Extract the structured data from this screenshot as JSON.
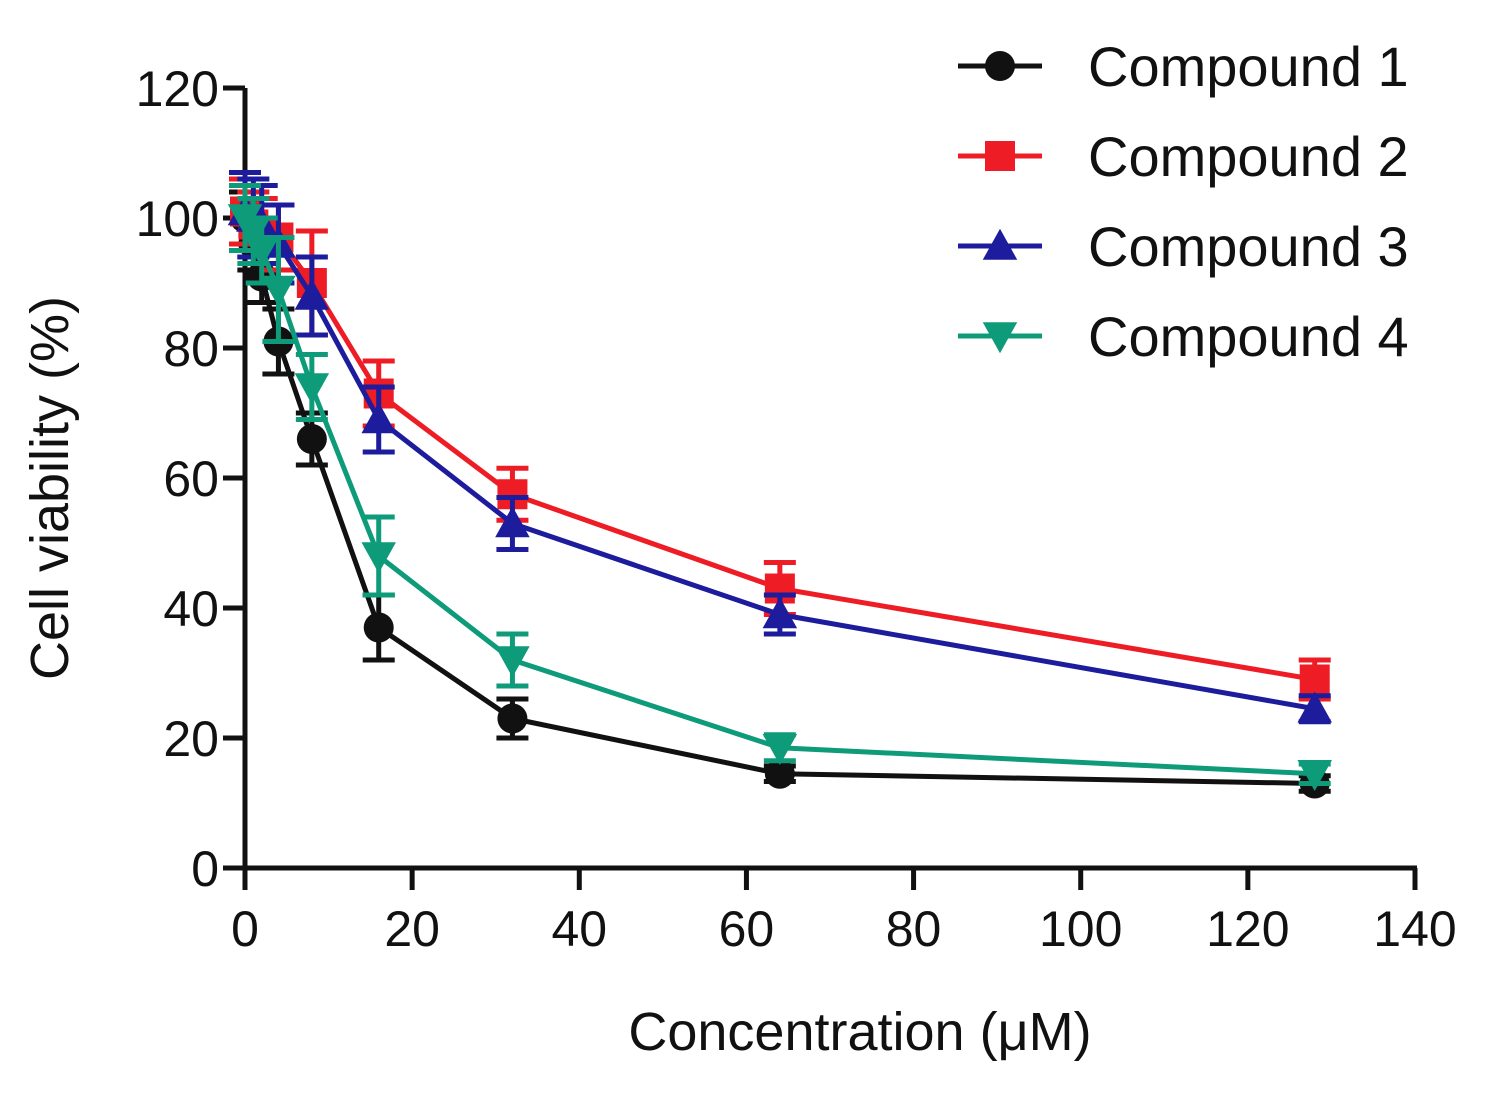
{
  "chart_data": {
    "type": "line",
    "title": "",
    "xlabel": "Concentration (μM)",
    "ylabel": "Cell viability (%)",
    "xlim": [
      0,
      140
    ],
    "ylim": [
      0,
      120
    ],
    "xticks": [
      0,
      20,
      40,
      60,
      80,
      100,
      120,
      140
    ],
    "yticks": [
      0,
      20,
      40,
      60,
      80,
      100,
      120
    ],
    "grid": false,
    "legend_position": "top-right",
    "x": [
      0,
      1,
      2,
      4,
      8,
      16,
      32,
      64,
      128
    ],
    "series": [
      {
        "name": "Compound 1",
        "color": "#111111",
        "marker": "circle",
        "values": [
          100,
          96,
          91,
          81,
          66,
          37,
          23,
          14.5,
          13
        ],
        "errors": [
          4,
          4,
          4,
          5,
          4,
          5,
          3,
          1.2,
          1.2
        ]
      },
      {
        "name": "Compound 2",
        "color": "#ee1c24",
        "marker": "square",
        "values": [
          101,
          99,
          98,
          97,
          90,
          73,
          57.5,
          43,
          29
        ],
        "errors": [
          5,
          5,
          5,
          5,
          8,
          5,
          4,
          4,
          3
        ]
      },
      {
        "name": "Compound 3",
        "color": "#1c1c9c",
        "marker": "triangle-up",
        "values": [
          101,
          100,
          99,
          96,
          88,
          69,
          53,
          39,
          24.5
        ],
        "errors": [
          6,
          6,
          6,
          6,
          6,
          5,
          4,
          3,
          2
        ]
      },
      {
        "name": "Compound 4",
        "color": "#0e9b7a",
        "marker": "triangle-down",
        "values": [
          100,
          98,
          95,
          89,
          74,
          48,
          32,
          18.5,
          14.5
        ],
        "errors": [
          5,
          5,
          5,
          8,
          5,
          6,
          4,
          2,
          1.5
        ]
      }
    ]
  }
}
